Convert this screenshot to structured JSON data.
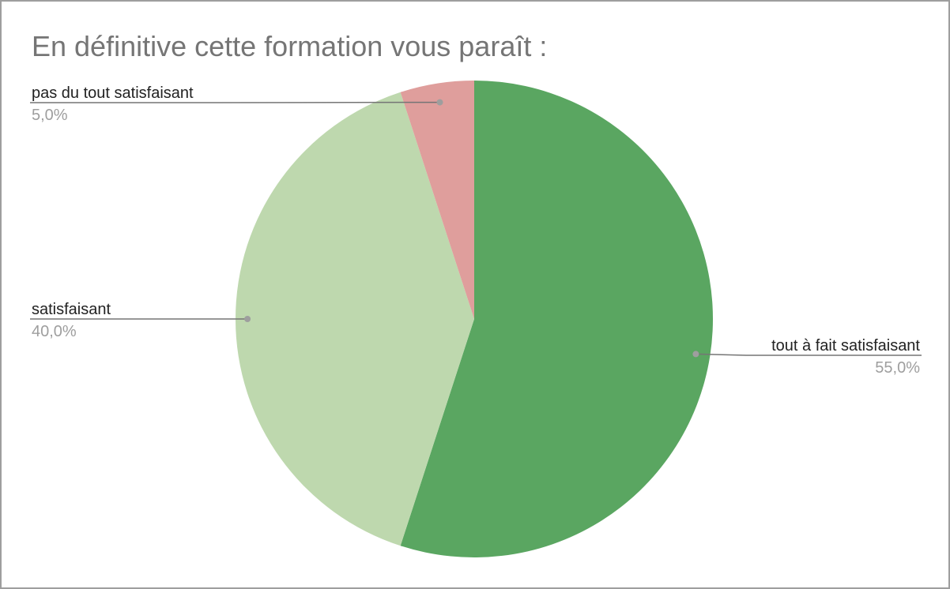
{
  "chart_data": {
    "type": "pie",
    "title": "En définitive cette formation vous paraît :",
    "slices": [
      {
        "label": "tout à fait satisfaisant",
        "value": 55.0,
        "value_label": "55,0%",
        "color": "#5aa661"
      },
      {
        "label": "satisfaisant",
        "value": 40.0,
        "value_label": "40,0%",
        "color": "#bed8ae"
      },
      {
        "label": "pas du tout satisfaisant",
        "value": 5.0,
        "value_label": "5,0%",
        "color": "#df9e9c"
      }
    ],
    "start_angle": "12 o'clock",
    "direction": "clockwise",
    "legend": "none (callout labels)"
  }
}
